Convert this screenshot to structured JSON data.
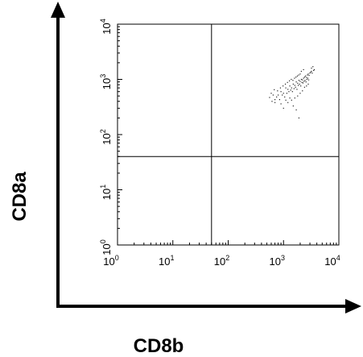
{
  "chart_data": {
    "type": "scatter",
    "xlabel": "CD8b",
    "ylabel": "CD8a",
    "xscale": "log",
    "yscale": "log",
    "xlim": [
      1,
      10000
    ],
    "ylim": [
      1,
      10000
    ],
    "x_tick_labels": [
      {
        "base": "10",
        "exp": "0"
      },
      {
        "base": "10",
        "exp": "1"
      },
      {
        "base": "10",
        "exp": "2"
      },
      {
        "base": "10",
        "exp": "3"
      },
      {
        "base": "10",
        "exp": "4"
      }
    ],
    "y_tick_labels": [
      {
        "base": "10",
        "exp": "0"
      },
      {
        "base": "10",
        "exp": "1"
      },
      {
        "base": "10",
        "exp": "2"
      },
      {
        "base": "10",
        "exp": "3"
      },
      {
        "base": "10",
        "exp": "4"
      }
    ],
    "quadrant_gates": {
      "x": 50,
      "y": 40
    },
    "series": [
      {
        "points": [
          [
            700,
            430
          ],
          [
            800,
            520
          ],
          [
            900,
            600
          ],
          [
            1000,
            560
          ],
          [
            1100,
            700
          ],
          [
            1200,
            660
          ],
          [
            1300,
            760
          ],
          [
            1400,
            700
          ],
          [
            1500,
            820
          ],
          [
            1600,
            780
          ],
          [
            1700,
            900
          ],
          [
            1800,
            850
          ],
          [
            1900,
            960
          ],
          [
            2000,
            920
          ],
          [
            2100,
            1000
          ],
          [
            2200,
            980
          ],
          [
            2300,
            1050
          ],
          [
            2400,
            1100
          ],
          [
            2500,
            1150
          ],
          [
            2600,
            1080
          ],
          [
            2700,
            1200
          ],
          [
            2800,
            1250
          ],
          [
            2900,
            1180
          ],
          [
            3000,
            1300
          ],
          [
            3100,
            1350
          ],
          [
            3200,
            1400
          ],
          [
            3300,
            1300
          ],
          [
            3500,
            1450
          ],
          [
            750,
            480
          ],
          [
            850,
            430
          ],
          [
            950,
            520
          ],
          [
            1050,
            480
          ],
          [
            1150,
            560
          ],
          [
            1250,
            600
          ],
          [
            1350,
            640
          ],
          [
            1450,
            600
          ],
          [
            1550,
            680
          ],
          [
            1650,
            720
          ],
          [
            1750,
            660
          ],
          [
            1850,
            780
          ],
          [
            1950,
            820
          ],
          [
            2050,
            760
          ],
          [
            2150,
            880
          ],
          [
            2250,
            860
          ],
          [
            2350,
            920
          ],
          [
            2450,
            960
          ],
          [
            2550,
            900
          ],
          [
            2650,
            1000
          ],
          [
            2750,
            1050
          ],
          [
            2850,
            980
          ],
          [
            650,
            520
          ],
          [
            620,
            400
          ],
          [
            700,
            380
          ],
          [
            780,
            620
          ],
          [
            880,
            700
          ],
          [
            980,
            760
          ],
          [
            1080,
            820
          ],
          [
            1180,
            880
          ],
          [
            1280,
            940
          ],
          [
            1380,
            1000
          ],
          [
            1480,
            960
          ],
          [
            1580,
            1050
          ],
          [
            1680,
            1100
          ],
          [
            1780,
            1150
          ],
          [
            1880,
            1200
          ],
          [
            2000,
            1250
          ],
          [
            1200,
            380
          ],
          [
            1400,
            420
          ],
          [
            1600,
            460
          ],
          [
            1800,
            500
          ],
          [
            2000,
            560
          ],
          [
            2200,
            620
          ],
          [
            1500,
            330
          ],
          [
            1700,
            280
          ],
          [
            1900,
            200
          ],
          [
            2400,
            720
          ],
          [
            2600,
            760
          ],
          [
            2800,
            820
          ],
          [
            3200,
            1600
          ],
          [
            3400,
            1700
          ],
          [
            3600,
            1500
          ],
          [
            900,
            360
          ],
          [
            1100,
            420
          ],
          [
            1300,
            460
          ],
          [
            2100,
            1400
          ],
          [
            2300,
            1500
          ],
          [
            1000,
            300
          ],
          [
            560,
            470
          ],
          [
            600,
            560
          ],
          [
            680,
            650
          ]
        ]
      }
    ]
  }
}
